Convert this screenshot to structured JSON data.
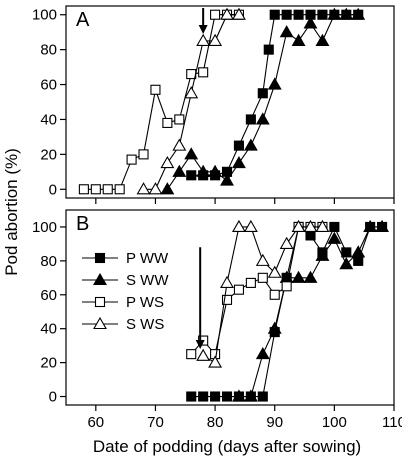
{
  "chart_data": [
    {
      "type": "line",
      "panel": "A",
      "xlim": [
        55,
        110
      ],
      "ylim": [
        -5,
        105
      ],
      "xticks": [
        60,
        70,
        80,
        90,
        100,
        110
      ],
      "yticks": [
        0,
        20,
        40,
        60,
        80,
        100
      ],
      "arrow_x": 78,
      "series": [
        {
          "marker": "square",
          "fill": "#000000",
          "x": [
            76,
            78,
            80,
            82,
            84,
            86,
            88,
            89,
            90,
            92,
            94,
            96,
            98,
            100,
            102,
            104
          ],
          "y": [
            8,
            8,
            8,
            10,
            25,
            40,
            55,
            80,
            100,
            100,
            100,
            100,
            100,
            100,
            100,
            100
          ]
        },
        {
          "marker": "triangle",
          "fill": "#000000",
          "x": [
            72,
            74,
            76,
            78,
            80,
            82,
            84,
            86,
            88,
            90,
            92,
            94,
            96,
            98,
            100,
            102,
            104
          ],
          "y": [
            0,
            10,
            20,
            10,
            10,
            5,
            15,
            25,
            40,
            60,
            90,
            85,
            95,
            85,
            100,
            100,
            100
          ]
        },
        {
          "marker": "square",
          "fill": "#ffffff",
          "x": [
            58,
            60,
            62,
            64,
            66,
            68,
            70,
            72,
            74,
            76,
            78,
            80,
            82,
            84
          ],
          "y": [
            0,
            0,
            0,
            0,
            17,
            20,
            57,
            38,
            40,
            66,
            67,
            100,
            100,
            100
          ]
        },
        {
          "marker": "triangle",
          "fill": "#ffffff",
          "x": [
            68,
            70,
            72,
            74,
            76,
            78,
            80,
            82,
            84
          ],
          "y": [
            0,
            0,
            15,
            25,
            55,
            85,
            85,
            100,
            100
          ]
        }
      ]
    },
    {
      "type": "line",
      "panel": "B",
      "xlim": [
        55,
        110
      ],
      "ylim": [
        -5,
        110
      ],
      "xticks": [
        60,
        70,
        80,
        90,
        100,
        110
      ],
      "yticks": [
        0,
        20,
        40,
        60,
        80,
        100
      ],
      "arrow_x": 77.5,
      "series": [
        {
          "name": "P WW",
          "marker": "square",
          "fill": "#000000",
          "x": [
            76,
            78,
            80,
            82,
            84,
            86,
            88,
            90,
            92,
            94,
            96,
            98,
            100,
            102,
            104,
            106,
            108
          ],
          "y": [
            0,
            0,
            0,
            0,
            0,
            0,
            0,
            38,
            70,
            100,
            95,
            85,
            100,
            85,
            80,
            100,
            100
          ]
        },
        {
          "name": "S WW",
          "marker": "triangle",
          "fill": "#000000",
          "x": [
            84,
            86,
            88,
            90,
            92,
            94,
            96,
            98,
            100,
            102,
            104,
            106,
            108
          ],
          "y": [
            0,
            0,
            25,
            40,
            70,
            70,
            70,
            83,
            93,
            78,
            85,
            100,
            100
          ]
        },
        {
          "name": "P WS",
          "marker": "square",
          "fill": "#ffffff",
          "x": [
            76,
            78,
            80,
            82,
            84,
            86,
            88,
            90,
            92,
            94,
            96,
            98
          ],
          "y": [
            25,
            33,
            25,
            57,
            63,
            67,
            70,
            60,
            65,
            100,
            100,
            100
          ]
        },
        {
          "name": "S WS",
          "marker": "triangle",
          "fill": "#ffffff",
          "x": [
            78,
            80,
            82,
            84,
            86,
            88,
            90,
            92,
            94,
            96,
            98
          ],
          "y": [
            24,
            20,
            67,
            100,
            100,
            80,
            73,
            90,
            100,
            100,
            100
          ]
        }
      ]
    }
  ],
  "figure": {
    "ylabel": "Pod abortion (%)",
    "xlabel": "Date of podding (days after sowing)",
    "legend_location": "left"
  }
}
